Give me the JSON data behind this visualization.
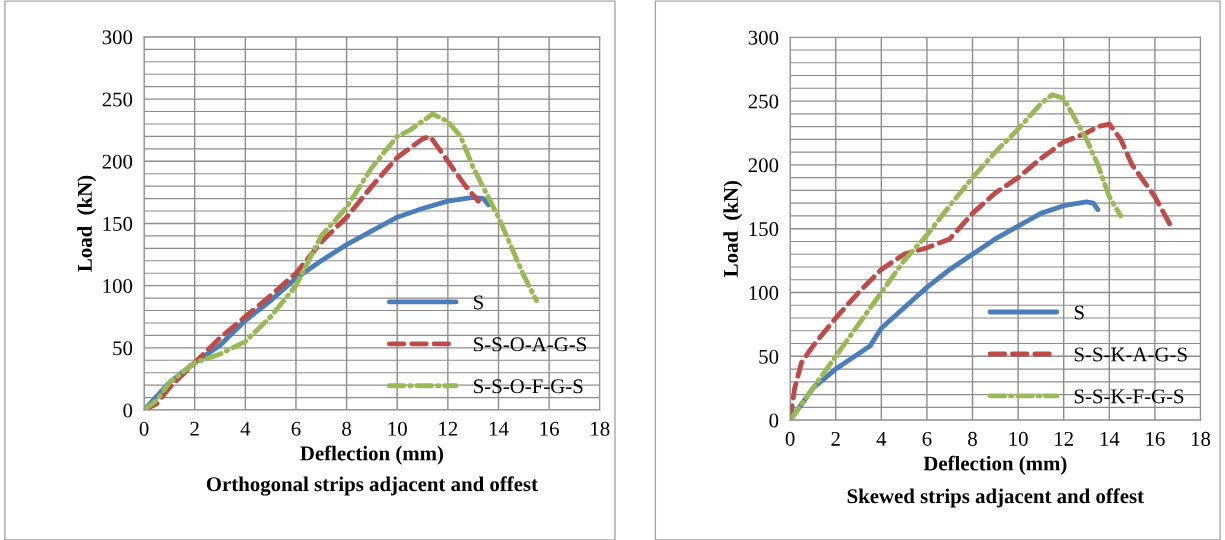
{
  "chart_data": [
    {
      "type": "line",
      "title": "Orthogonal strips adjacent and offest",
      "xlabel": "Deflection (mm)",
      "ylabel": "Load  (kN)",
      "xlim": [
        0,
        18
      ],
      "xticks": [
        0,
        2,
        4,
        6,
        8,
        10,
        12,
        14,
        16,
        18
      ],
      "ylim": [
        0,
        300
      ],
      "yticks": [
        0,
        50,
        100,
        150,
        200,
        250,
        300
      ],
      "grid": true,
      "legend": "bottom right",
      "series": [
        {
          "name": "S",
          "color": "#4a7ebb",
          "line_style": "solid",
          "x": [
            0,
            1,
            2,
            3,
            4,
            5,
            6,
            7,
            8,
            9,
            10,
            11,
            12,
            13,
            13.4,
            13.6
          ],
          "values": [
            0,
            22,
            38,
            52,
            72,
            88,
            106,
            120,
            133,
            144,
            155,
            162,
            168,
            171,
            170,
            165
          ]
        },
        {
          "name": "S-S-O-A-G-S",
          "color": "#be4b48",
          "line_style": "dashed",
          "x": [
            0,
            0.5,
            1,
            2,
            3,
            4,
            5,
            6,
            7,
            8,
            9,
            10,
            11,
            11.3,
            12,
            12.7,
            13.2
          ],
          "values": [
            0,
            5,
            18,
            38,
            58,
            75,
            92,
            110,
            135,
            155,
            180,
            203,
            218,
            220,
            200,
            180,
            168
          ]
        },
        {
          "name": "S-S-O-F-G-S",
          "color": "#98b954",
          "line_style": "dashdot",
          "x": [
            0,
            0.5,
            1,
            2,
            3,
            4,
            5,
            6,
            7,
            8,
            9,
            10,
            10.5,
            11.4,
            12,
            12.5,
            13,
            13.5,
            14,
            15,
            15.5
          ],
          "values": [
            0,
            8,
            22,
            38,
            45,
            55,
            75,
            100,
            140,
            163,
            195,
            220,
            225,
            238,
            232,
            220,
            195,
            175,
            155,
            108,
            88
          ]
        }
      ]
    },
    {
      "type": "line",
      "title": "Skewed strips adjacent and offest",
      "xlabel": "Deflection (mm)",
      "ylabel": "Load  (kN)",
      "xlim": [
        0,
        18
      ],
      "xticks": [
        0,
        2,
        4,
        6,
        8,
        10,
        12,
        14,
        16,
        18
      ],
      "ylim": [
        0,
        300
      ],
      "yticks": [
        0,
        50,
        100,
        150,
        200,
        250,
        300
      ],
      "grid": true,
      "legend": "bottom right",
      "series": [
        {
          "name": "S",
          "color": "#4a7ebb",
          "line_style": "solid",
          "x": [
            0,
            1,
            2,
            3,
            3.5,
            4,
            5,
            6,
            7,
            8,
            9,
            10,
            11,
            12,
            13,
            13.3,
            13.5
          ],
          "values": [
            0,
            25,
            40,
            52,
            58,
            72,
            88,
            104,
            118,
            130,
            142,
            152,
            162,
            168,
            171,
            170,
            165
          ]
        },
        {
          "name": "S-S-K-A-G-S",
          "color": "#be4b48",
          "line_style": "dashed",
          "x": [
            0,
            0.2,
            0.5,
            1,
            2,
            3,
            4,
            5,
            6,
            7,
            8,
            9,
            10,
            11,
            12,
            13,
            13.5,
            14,
            14.5,
            15,
            16,
            16.7
          ],
          "values": [
            0,
            25,
            45,
            58,
            80,
            100,
            118,
            130,
            135,
            142,
            162,
            178,
            190,
            205,
            218,
            225,
            230,
            232,
            220,
            200,
            175,
            152
          ]
        },
        {
          "name": "S-S-K-F-G-S",
          "color": "#98b954",
          "line_style": "dashdot",
          "x": [
            0,
            1,
            2,
            3,
            4,
            5,
            6,
            7,
            8,
            9,
            10,
            11,
            11.5,
            12,
            13,
            13.5,
            14,
            14.5
          ],
          "values": [
            0,
            25,
            50,
            75,
            100,
            125,
            145,
            168,
            190,
            210,
            228,
            248,
            255,
            252,
            220,
            200,
            175,
            160
          ]
        }
      ]
    }
  ]
}
